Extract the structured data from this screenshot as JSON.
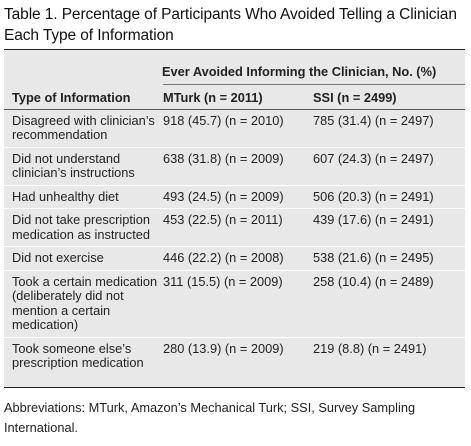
{
  "table": {
    "title": "Table 1. Percentage of Participants Who Avoided Telling a Clinician Each Type of Information",
    "spanner": "Ever Avoided Informing the Clinician, No. (%)",
    "columns": [
      "Type of Information",
      "MTurk (n = 2011)",
      "SSI (n = 2499)"
    ],
    "rows": [
      [
        "Disagreed with clinician’s recommendation",
        "918 (45.7) (n = 2010)",
        "785 (31.4) (n = 2497)"
      ],
      [
        "Did not understand clinician’s instructions",
        "638 (31.8) (n = 2009)",
        "607 (24.3) (n = 2497)"
      ],
      [
        "Had unhealthy diet",
        "493 (24.5) (n = 2009)",
        "506 (20.3) (n = 2491)"
      ],
      [
        "Did not take prescription medication as instructed",
        "453 (22.5) (n = 2011)",
        "439 (17.6) (n = 2491)"
      ],
      [
        "Did not exercise",
        "446 (22.2) (n = 2008)",
        "538 (21.6) (n = 2495)"
      ],
      [
        "Took a certain medication (deliberately did not mention a certain medication)",
        "311 (15.5) (n = 2009)",
        "258 (10.4) (n = 2489)"
      ],
      [
        "Took someone else’s prescription medication",
        "280 (13.9) (n = 2009)",
        "219 (8.8) (n = 2491)"
      ]
    ],
    "footnote": "Abbreviations: MTurk, Amazon’s Mechanical Turk; SSI, Survey Sampling International."
  }
}
